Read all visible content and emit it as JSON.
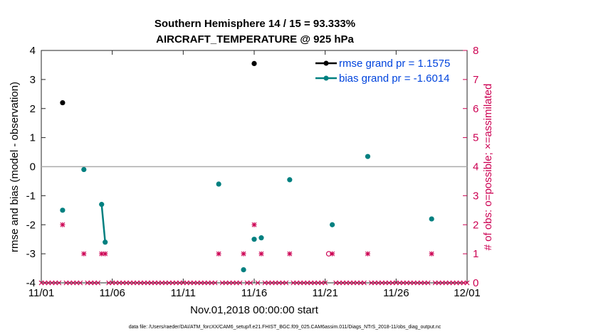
{
  "chart_data": {
    "type": "scatter",
    "title": "Southern Hemisphere 14 / 15 = 93.333%",
    "subtitle": "AIRCRAFT_TEMPERATURE @ 925 hPa",
    "xlabel": "Nov.01,2018 00:00:00 start",
    "ylabel": "rmse and bias (model - observation)",
    "ylabel_right": "# of obs: o=possible; ×=assimilated",
    "footnote": "data file: /Users/raeder/DAI/ATM_forcXX/CAM6_setup/f.e21.FHIST_BGC.f09_025.CAM6assim.011/Diags_NTrS_2018-11/obs_diag_output.nc",
    "xlim": [
      0,
      30
    ],
    "ylim": [
      -4,
      4
    ],
    "ylim_right": [
      0,
      8
    ],
    "x_ticks": [
      0,
      5,
      10,
      15,
      20,
      25,
      30
    ],
    "x_tick_labels": [
      "11/01",
      "11/06",
      "11/11",
      "11/16",
      "11/21",
      "11/26",
      "12/01"
    ],
    "y_ticks": [
      -4,
      -3,
      -2,
      -1,
      0,
      1,
      2,
      3,
      4
    ],
    "y_tick_labels": [
      "-4",
      "-3",
      "-2",
      "-1",
      "0",
      "1",
      "2",
      "3",
      "4"
    ],
    "y_right_ticks": [
      0,
      1,
      2,
      3,
      4,
      5,
      6,
      7,
      8
    ],
    "y_right_tick_labels": [
      "0",
      "1",
      "2",
      "3",
      "4",
      "5",
      "6",
      "7",
      "8"
    ],
    "series": [
      {
        "name": "rmse grand pr = 1.1575",
        "color": "#000000",
        "points": [
          [
            1.5,
            2.2
          ],
          [
            15.0,
            3.55
          ]
        ]
      },
      {
        "name": "bias grand pr = -1.6014",
        "color": "#008080",
        "points": [
          [
            1.5,
            -1.5
          ],
          [
            3.0,
            -0.1
          ],
          [
            4.25,
            -1.3
          ],
          [
            4.5,
            -2.6
          ],
          [
            12.5,
            -0.6
          ],
          [
            14.25,
            -3.55
          ],
          [
            15.0,
            -2.5
          ],
          [
            15.5,
            -2.45
          ],
          [
            17.5,
            -0.45
          ],
          [
            20.5,
            -2.0
          ],
          [
            23.0,
            0.35
          ],
          [
            27.5,
            -1.8
          ]
        ],
        "segments": [
          [
            2,
            3
          ]
        ]
      }
    ],
    "obs_counts": {
      "color": "#cc0052",
      "step_days": 0.25,
      "assimilated": [
        [
          1.5,
          2
        ],
        [
          3.0,
          1
        ],
        [
          4.25,
          1
        ],
        [
          4.5,
          1
        ],
        [
          12.5,
          1
        ],
        [
          14.25,
          1
        ],
        [
          15.0,
          2
        ],
        [
          15.5,
          1
        ],
        [
          17.5,
          1
        ],
        [
          20.5,
          1
        ],
        [
          23.0,
          1
        ],
        [
          27.5,
          1
        ]
      ],
      "possible": [
        [
          20.25,
          1
        ]
      ]
    }
  }
}
